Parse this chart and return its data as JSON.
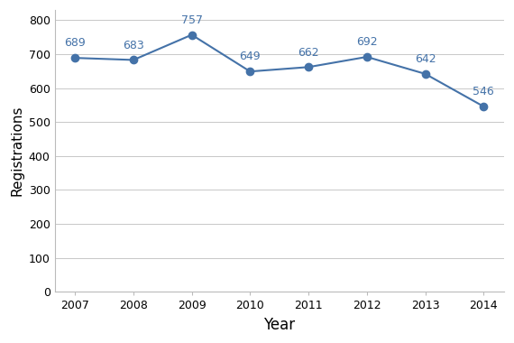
{
  "years": [
    2007,
    2008,
    2009,
    2010,
    2011,
    2012,
    2013,
    2014
  ],
  "values": [
    689,
    683,
    757,
    649,
    662,
    692,
    642,
    546
  ],
  "line_color": "#4472a8",
  "marker_color": "#4472a8",
  "marker_style": "o",
  "marker_size": 6,
  "line_width": 1.5,
  "xlabel": "Year",
  "ylabel": "Registrations",
  "xlabel_fontsize": 12,
  "ylabel_fontsize": 11,
  "tick_fontsize": 9,
  "annotation_fontsize": 9,
  "annotation_color": "#4472a8",
  "ylim": [
    0,
    830
  ],
  "yticks": [
    0,
    100,
    200,
    300,
    400,
    500,
    600,
    700,
    800
  ],
  "grid_color": "#c8c8c8",
  "grid_linewidth": 0.7,
  "background_color": "#ffffff",
  "plot_bg_color": "#ffffff",
  "spine_color": "#bbbbbb"
}
